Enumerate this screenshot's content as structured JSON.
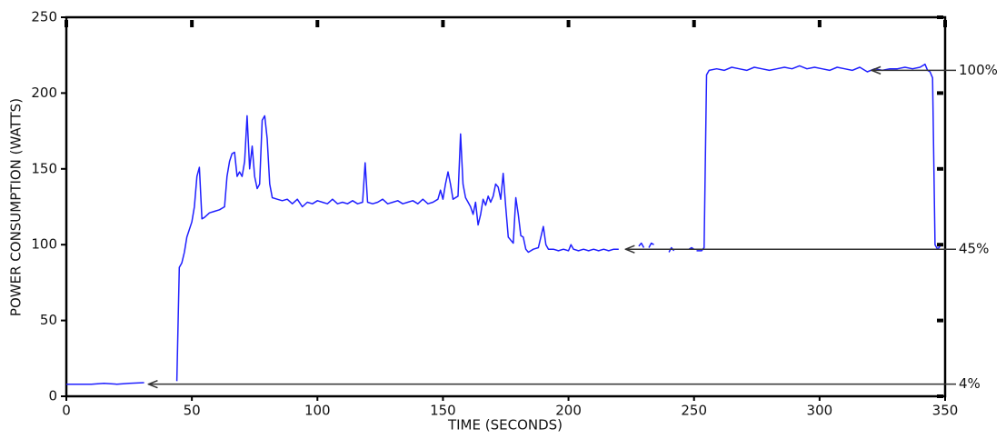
{
  "chart_data": {
    "type": "line",
    "xlabel": "TIME (SECONDS)",
    "ylabel": "POWER CONSUMPTION (WATTS)",
    "xlim": [
      0,
      350
    ],
    "xticks": [
      0,
      50,
      100,
      150,
      200,
      250,
      300,
      350
    ],
    "ylim": [
      0,
      250
    ],
    "yticks": [
      0,
      50,
      100,
      150,
      200,
      250
    ],
    "grid": false,
    "series": [
      {
        "color": "#1f1fff",
        "x": [
          0,
          5,
          10,
          15,
          20,
          25,
          31,
          38,
          44,
          45,
          46,
          47,
          48,
          50,
          51,
          52,
          53,
          54,
          55,
          57,
          59,
          61,
          63,
          64,
          65,
          66,
          67,
          68,
          69,
          70,
          71,
          72,
          73,
          74,
          75,
          76,
          77,
          78,
          79,
          80,
          81,
          82,
          84,
          86,
          88,
          90,
          92,
          94,
          96,
          98,
          100,
          102,
          104,
          106,
          108,
          110,
          112,
          114,
          116,
          118,
          119,
          120,
          122,
          124,
          126,
          128,
          130,
          132,
          134,
          136,
          138,
          140,
          142,
          144,
          146,
          148,
          149,
          150,
          151,
          152,
          153,
          154,
          156,
          157,
          158,
          159,
          160,
          161,
          162,
          163,
          164,
          165,
          166,
          167,
          168,
          169,
          170,
          171,
          172,
          173,
          174,
          175,
          176,
          177,
          178,
          179,
          180,
          181,
          182,
          183,
          184,
          186,
          188,
          190,
          191,
          192,
          194,
          196,
          198,
          200,
          201,
          202,
          204,
          206,
          208,
          210,
          212,
          214,
          216,
          218,
          220,
          224,
          228,
          229,
          230,
          231,
          232,
          233,
          234,
          237,
          240,
          241,
          242,
          245,
          248,
          249,
          250,
          250.5,
          251,
          253,
          254,
          255,
          256,
          259,
          262,
          265,
          268,
          271,
          274,
          277,
          280,
          283,
          286,
          289,
          292,
          295,
          298,
          301,
          304,
          307,
          310,
          313,
          316,
          319,
          322,
          325,
          328,
          331,
          334,
          337,
          340,
          342,
          343,
          344,
          345,
          346,
          347,
          348
        ],
        "values": [
          8,
          8,
          8,
          8.5,
          8,
          8.5,
          9,
          null,
          10,
          85,
          88,
          95,
          105,
          115,
          125,
          145,
          151,
          117,
          118,
          121,
          122,
          123,
          125,
          145,
          155,
          160,
          161,
          145,
          148,
          145,
          155,
          185,
          150,
          165,
          145,
          137,
          140,
          182,
          185,
          170,
          140,
          131,
          130,
          129,
          130,
          127,
          130,
          125,
          128,
          127,
          129,
          128,
          127,
          130,
          127,
          128,
          127,
          129,
          127,
          128,
          154,
          128,
          127,
          128,
          130,
          127,
          128,
          129,
          127,
          128,
          129,
          127,
          130,
          127,
          128,
          130,
          136,
          130,
          140,
          148,
          140,
          130,
          132,
          173,
          140,
          131,
          128,
          125,
          120,
          128,
          113,
          120,
          130,
          126,
          132,
          128,
          132,
          140,
          138,
          130,
          147,
          125,
          105,
          103,
          101,
          131,
          120,
          106,
          105,
          97,
          95,
          97,
          98,
          112,
          100,
          97,
          97,
          96,
          97,
          96,
          100,
          97,
          96,
          97,
          96,
          97,
          96,
          97,
          96,
          97,
          97,
          null,
          99,
          101,
          98,
          null,
          98,
          101,
          100,
          null,
          95,
          98,
          96,
          null,
          97,
          98,
          97,
          null,
          96,
          96,
          98,
          212,
          215,
          216,
          215,
          217,
          216,
          215,
          217,
          216,
          215,
          216,
          217,
          216,
          218,
          216,
          217,
          216,
          215,
          217,
          216,
          215,
          217,
          214,
          216,
          215,
          216,
          216,
          217,
          216,
          217,
          219,
          215,
          214,
          210,
          100,
          97,
          99
        ]
      }
    ],
    "annotations": [
      {
        "text": "100%",
        "x": 320,
        "y": 215
      },
      {
        "text": "45%",
        "x": 222,
        "y": 97
      },
      {
        "text": "4%",
        "x": 32,
        "y": 8
      }
    ]
  }
}
